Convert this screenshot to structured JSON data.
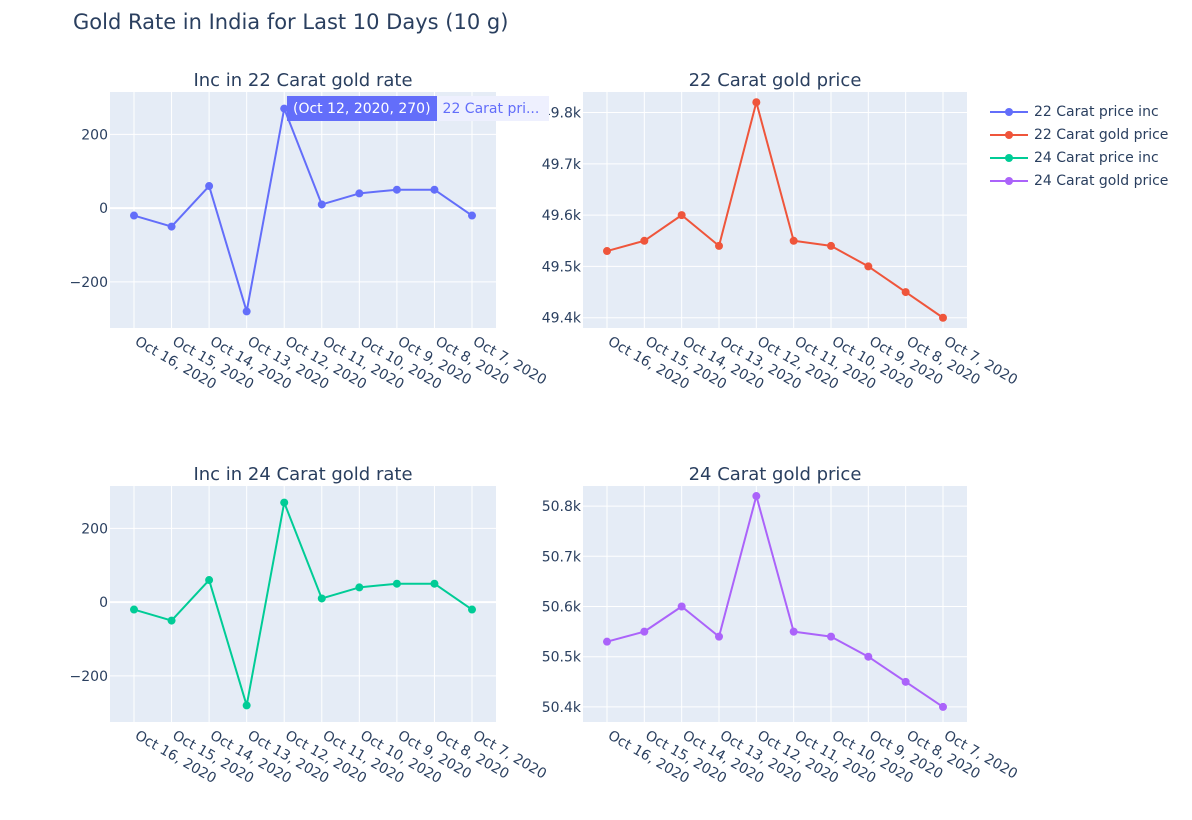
{
  "title": "Gold Rate in India for Last 10 Days (10 g)",
  "colors": {
    "plot_bg": "#e5ecf6",
    "grid": "#ffffff",
    "text": "#2a3f5f",
    "c22inc": "#636efa",
    "c22price": "#ef553b",
    "c24inc": "#00cc96",
    "c24price": "#ab63fa"
  },
  "legend": [
    {
      "name": "22 Carat price inc",
      "color": "#636efa"
    },
    {
      "name": "22 Carat gold price",
      "color": "#ef553b"
    },
    {
      "name": "24 Carat price inc",
      "color": "#00cc96"
    },
    {
      "name": "24 Carat gold price",
      "color": "#ab63fa"
    }
  ],
  "hover": {
    "value": "(Oct 12, 2020, 270)",
    "name": "22 Carat pri..."
  },
  "chart_data": [
    {
      "type": "line",
      "title": "Inc in 22 Carat gold rate",
      "series_name": "22 Carat price inc",
      "color": "#636efa",
      "categories": [
        "Oct 16, 2020",
        "Oct 15, 2020",
        "Oct 14, 2020",
        "Oct 13, 2020",
        "Oct 12, 2020",
        "Oct 11, 2020",
        "Oct 10, 2020",
        "Oct 9, 2020",
        "Oct 8, 2020",
        "Oct 7, 2020"
      ],
      "values": [
        -20,
        -50,
        60,
        -280,
        270,
        10,
        40,
        50,
        50,
        -20
      ],
      "ylim": [
        -325,
        315
      ],
      "yticks": [
        -200,
        0,
        200
      ],
      "ytick_labels": [
        "−200",
        "0",
        "200"
      ]
    },
    {
      "type": "line",
      "title": "22 Carat gold price",
      "series_name": "22 Carat gold price",
      "color": "#ef553b",
      "categories": [
        "Oct 16, 2020",
        "Oct 15, 2020",
        "Oct 14, 2020",
        "Oct 13, 2020",
        "Oct 12, 2020",
        "Oct 11, 2020",
        "Oct 10, 2020",
        "Oct 9, 2020",
        "Oct 8, 2020",
        "Oct 7, 2020"
      ],
      "values": [
        49530,
        49550,
        49600,
        49540,
        49820,
        49550,
        49540,
        49500,
        49450,
        49400
      ],
      "ylim": [
        49380,
        49840
      ],
      "yticks": [
        49400,
        49500,
        49600,
        49700,
        49800
      ],
      "ytick_labels": [
        "49.4k",
        "49.5k",
        "49.6k",
        "49.7k",
        "49.8k"
      ]
    },
    {
      "type": "line",
      "title": "Inc in 24 Carat gold rate",
      "series_name": "24 Carat price inc",
      "color": "#00cc96",
      "categories": [
        "Oct 16, 2020",
        "Oct 15, 2020",
        "Oct 14, 2020",
        "Oct 13, 2020",
        "Oct 12, 2020",
        "Oct 11, 2020",
        "Oct 10, 2020",
        "Oct 9, 2020",
        "Oct 8, 2020",
        "Oct 7, 2020"
      ],
      "values": [
        -20,
        -50,
        60,
        -280,
        270,
        10,
        40,
        50,
        50,
        -20
      ],
      "ylim": [
        -325,
        315
      ],
      "yticks": [
        -200,
        0,
        200
      ],
      "ytick_labels": [
        "−200",
        "0",
        "200"
      ]
    },
    {
      "type": "line",
      "title": "24 Carat gold price",
      "series_name": "24 Carat gold price",
      "color": "#ab63fa",
      "categories": [
        "Oct 16, 2020",
        "Oct 15, 2020",
        "Oct 14, 2020",
        "Oct 13, 2020",
        "Oct 12, 2020",
        "Oct 11, 2020",
        "Oct 10, 2020",
        "Oct 9, 2020",
        "Oct 8, 2020",
        "Oct 7, 2020"
      ],
      "values": [
        50530,
        50550,
        50600,
        50540,
        50820,
        50550,
        50540,
        50500,
        50450,
        50400
      ],
      "ylim": [
        50370,
        50840
      ],
      "yticks": [
        50400,
        50500,
        50600,
        50700,
        50800
      ],
      "ytick_labels": [
        "50.4k",
        "50.5k",
        "50.6k",
        "50.7k",
        "50.8k"
      ]
    }
  ]
}
